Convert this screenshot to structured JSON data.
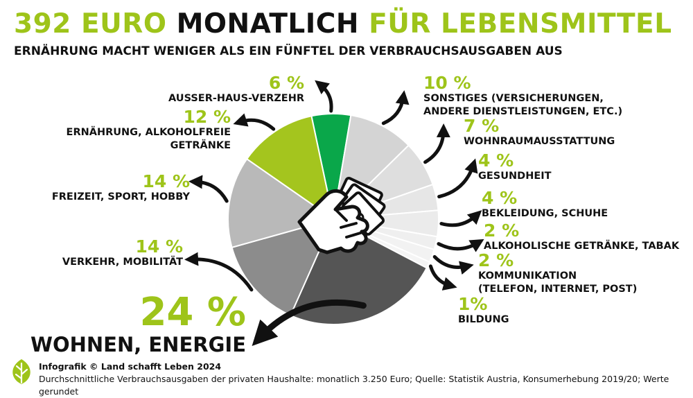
{
  "title": {
    "part1": "392 EURO",
    "part2": "MONATLICH",
    "part3": "FÜR LEBENSMITTEL"
  },
  "subtitle": "ERNÄHRUNG MACHT WENIGER ALS EIN FÜNFTEL DER VERBRAUCHSAUSGABEN AUS",
  "chart_data": {
    "type": "pie",
    "title": "392 EURO MONATLICH FÜR LEBENSMITTEL",
    "subtitle": "ERNÄHRUNG MACHT WENIGER ALS EIN FÜNFTEL DER VERBRAUCHSAUSGABEN AUS",
    "slices": [
      {
        "label": "AUSSER-HAUS-VERZEHR",
        "label_lines": [
          "AUSSER-HAUS-VERZEHR"
        ],
        "pct_label": "6 %",
        "value": 6,
        "color": "#0aa74a"
      },
      {
        "label": "SONSTIGES (VERSICHERUNGEN, ANDERE DIENSTLEISTUNGEN, ETC.)",
        "label_lines": [
          "SONSTIGES (VERSICHERUNGEN,",
          "ANDERE DIENSTLEISTUNGEN, ETC.)"
        ],
        "pct_label": "10 %",
        "value": 10,
        "color": "#d4d4d4"
      },
      {
        "label": "WOHNRAUMAUSSTATTUNG",
        "label_lines": [
          "WOHNRAUMAUSSTATTUNG"
        ],
        "pct_label": "7 %",
        "value": 7,
        "color": "#dedede"
      },
      {
        "label": "GESUNDHEIT",
        "label_lines": [
          "GESUNDHEIT"
        ],
        "pct_label": "4 %",
        "value": 4,
        "color": "#e6e6e6"
      },
      {
        "label": "BEKLEIDUNG, SCHUHE",
        "label_lines": [
          "BEKLEIDUNG, SCHUHE"
        ],
        "pct_label": "4 %",
        "value": 4,
        "color": "#ebebeb"
      },
      {
        "label": "ALKOHOLISCHE GETRÄNKE, TABAK",
        "label_lines": [
          "ALKOHOLISCHE GETRÄNKE, TABAK"
        ],
        "pct_label": "2 %",
        "value": 2,
        "color": "#efefef"
      },
      {
        "label": "KOMMUNIKATION (TELEFON, INTERNET, POST)",
        "label_lines": [
          "KOMMUNIKATION",
          "(TELEFON, INTERNET, POST)"
        ],
        "pct_label": "2 %",
        "value": 2,
        "color": "#f2f2f2"
      },
      {
        "label": "BILDUNG",
        "label_lines": [
          "BILDUNG"
        ],
        "pct_label": "1%",
        "value": 1,
        "color": "#f5f5f5"
      },
      {
        "label": "WOHNEN, ENERGIE",
        "label_lines": [
          "WOHNEN, ENERGIE"
        ],
        "pct_label": "24 %",
        "value": 24,
        "color": "#555555"
      },
      {
        "label": "VERKEHR, MOBILITÄT",
        "label_lines": [
          "VERKEHR, MOBILITÄT"
        ],
        "pct_label": "14 %",
        "value": 14,
        "color": "#8c8c8c"
      },
      {
        "label": "FREIZEIT, SPORT, HOBBY",
        "label_lines": [
          "FREIZEIT, SPORT, HOBBY"
        ],
        "pct_label": "14 %",
        "value": 14,
        "color": "#b9b9b9"
      },
      {
        "label": "ERNÄHRUNG, ALKOHOLFREIE GETRÄNKE",
        "label_lines": [
          "ERNÄHRUNG, ALKOHOLFREIE",
          "GETRÄNKE"
        ],
        "pct_label": "12 %",
        "value": 12,
        "color": "#a4c51e"
      }
    ]
  },
  "footer": {
    "credit": "Infografik © Land schafft Leben 2024",
    "source": "Durchschnittliche Verbrauchsausgaben der privaten Haushalte: monatlich 3.250 Euro; Quelle: Statistik Austria, Konsumerhebung 2019/20; Werte gerundet"
  },
  "colors": {
    "accent": "#9ec41a",
    "text": "#111111"
  },
  "icons": {
    "center": "hand-with-money-icon",
    "logo": "leaf-logo-icon",
    "pointers": "curved-arrow-icon"
  }
}
